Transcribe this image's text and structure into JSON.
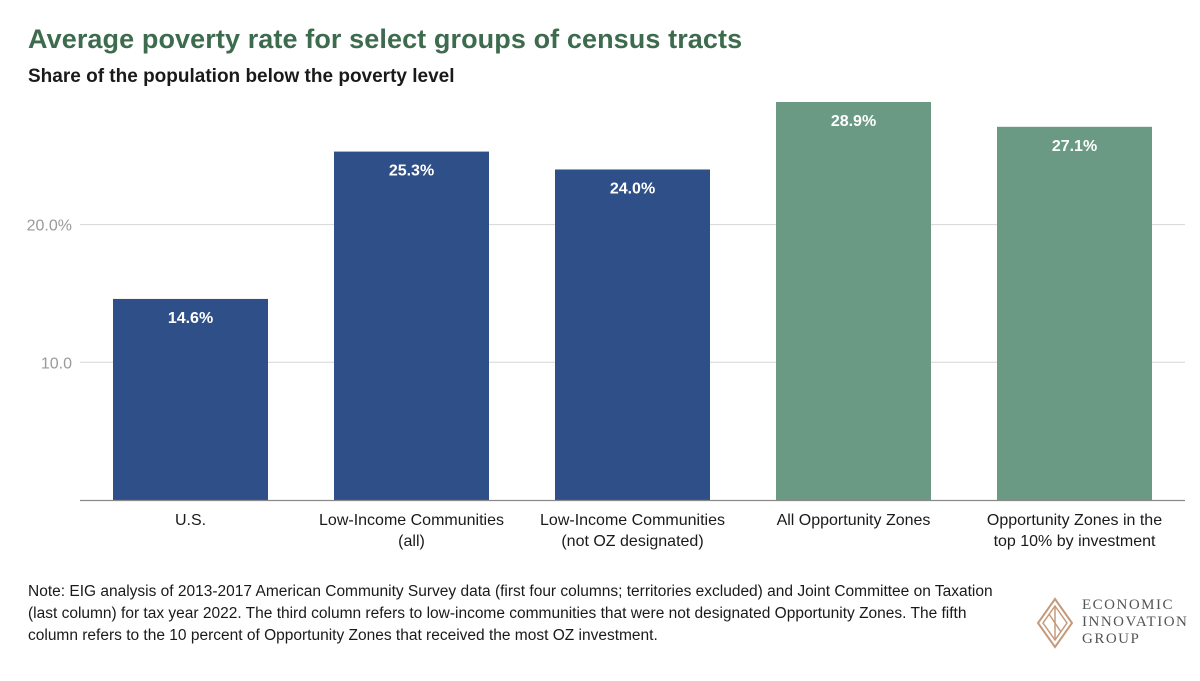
{
  "title": "Average poverty rate for select groups of census tracts",
  "subtitle": "Share of the population below the poverty level",
  "note": "Note: EIG analysis of 2013-2017 American Community Survey data (first four columns; territories excluded) and Joint Committee on Taxation (last column) for tax year 2022. The third column refers to low-income communities that were not designated Opportunity Zones. The fifth column refers to the 10 percent of Opportunity Zones that received the most OZ investment.",
  "logo": {
    "line1": "ECONOMIC",
    "line2": "INNOVATION",
    "line3": "GROUP"
  },
  "colors": {
    "blue": "#2e4f88",
    "green": "#6a9a84",
    "title": "#3d6b4e"
  },
  "chart_data": {
    "type": "bar",
    "title": "Average poverty rate for select groups of census tracts",
    "subtitle": "Share of the population below the poverty level",
    "categories": [
      [
        "U.S."
      ],
      [
        "Low-Income Communities",
        "(all)"
      ],
      [
        "Low-Income Communities",
        "(not OZ designated)"
      ],
      [
        "All Opportunity Zones"
      ],
      [
        "Opportunity Zones in the",
        "top 10% by investment"
      ]
    ],
    "values": [
      14.6,
      25.3,
      24.0,
      28.9,
      27.1
    ],
    "value_labels": [
      "14.6%",
      "25.3%",
      "24.0%",
      "28.9%",
      "27.1%"
    ],
    "bar_colors": [
      "#2e4f88",
      "#2e4f88",
      "#2e4f88",
      "#6a9a84",
      "#6a9a84"
    ],
    "yticks": [
      10,
      20
    ],
    "ytick_labels": [
      "10.0",
      "20.0%"
    ],
    "ylim": [
      0,
      28.9
    ],
    "grid": true,
    "xlabel": "",
    "ylabel": ""
  }
}
